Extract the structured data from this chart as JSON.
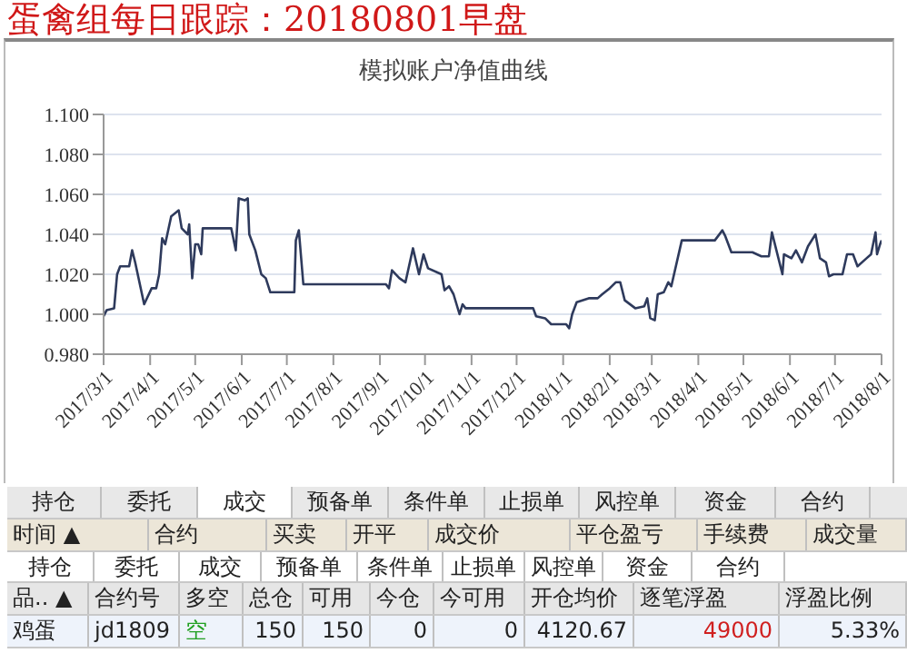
{
  "chart_data": {
    "type": "line",
    "title": "蛋禽组每日跟踪：20180801早盘",
    "subtitle": "模拟账户净值曲线",
    "x": [
      "2017-03-01",
      "2017-03-03",
      "2017-03-08",
      "2017-03-10",
      "2017-03-12",
      "2017-03-18",
      "2017-03-20",
      "2017-03-22",
      "2017-03-28",
      "2017-04-02",
      "2017-04-05",
      "2017-04-07",
      "2017-04-09",
      "2017-04-11",
      "2017-04-15",
      "2017-04-20",
      "2017-04-22",
      "2017-04-26",
      "2017-04-27",
      "2017-04-29",
      "2017-05-01",
      "2017-05-03",
      "2017-05-05",
      "2017-05-06",
      "2017-05-25",
      "2017-05-28",
      "2017-05-30",
      "2017-06-03",
      "2017-06-05",
      "2017-06-06",
      "2017-06-10",
      "2017-06-14",
      "2017-06-17",
      "2017-06-20",
      "2017-07-06",
      "2017-07-07",
      "2017-07-09",
      "2017-07-12",
      "2017-09-05",
      "2017-09-07",
      "2017-09-09",
      "2017-09-14",
      "2017-09-18",
      "2017-09-23",
      "2017-09-27",
      "2017-09-30",
      "2017-10-03",
      "2017-10-12",
      "2017-10-14",
      "2017-10-17",
      "2017-10-20",
      "2017-10-24",
      "2017-10-26",
      "2017-10-28",
      "2017-12-12",
      "2017-12-14",
      "2017-12-20",
      "2017-12-24",
      "2018-01-03",
      "2018-01-05",
      "2018-01-07",
      "2018-01-10",
      "2018-01-18",
      "2018-01-24",
      "2018-01-27",
      "2018-02-01",
      "2018-02-05",
      "2018-02-08",
      "2018-02-11",
      "2018-02-18",
      "2018-02-24",
      "2018-02-26",
      "2018-02-28",
      "2018-03-03",
      "2018-03-05",
      "2018-03-09",
      "2018-03-12",
      "2018-03-14",
      "2018-03-21",
      "2018-04-12",
      "2018-04-17",
      "2018-04-19",
      "2018-04-23",
      "2018-05-07",
      "2018-05-13",
      "2018-05-18",
      "2018-05-20",
      "2018-05-23",
      "2018-05-27",
      "2018-05-28",
      "2018-06-02",
      "2018-06-05",
      "2018-06-09",
      "2018-06-13",
      "2018-06-18",
      "2018-06-21",
      "2018-06-25",
      "2018-06-27",
      "2018-06-30",
      "2018-07-06",
      "2018-07-09",
      "2018-07-13",
      "2018-07-16",
      "2018-07-22",
      "2018-07-25",
      "2018-07-28",
      "2018-07-29",
      "2018-07-31",
      "2018-08-01"
    ],
    "series": [
      {
        "color": "#2e3a5c",
        "values": [
          0.999,
          1.002,
          1.003,
          1.02,
          1.024,
          1.024,
          1.032,
          1.026,
          1.005,
          1.013,
          1.013,
          1.02,
          1.038,
          1.035,
          1.049,
          1.052,
          1.043,
          1.04,
          1.045,
          1.018,
          1.035,
          1.035,
          1.03,
          1.043,
          1.043,
          1.032,
          1.058,
          1.057,
          1.058,
          1.04,
          1.032,
          1.02,
          1.018,
          1.011,
          1.011,
          1.037,
          1.042,
          1.015,
          1.015,
          1.013,
          1.022,
          1.018,
          1.016,
          1.033,
          1.02,
          1.03,
          1.023,
          1.02,
          1.012,
          1.014,
          1.01,
          1.0,
          1.005,
          1.003,
          1.003,
          0.999,
          0.998,
          0.995,
          0.995,
          0.993,
          1.0,
          1.006,
          1.008,
          1.008,
          1.01,
          1.013,
          1.016,
          1.016,
          1.007,
          1.003,
          1.004,
          1.008,
          0.998,
          0.997,
          1.01,
          1.011,
          1.016,
          1.014,
          1.037,
          1.037,
          1.042,
          1.039,
          1.031,
          1.031,
          1.029,
          1.029,
          1.041,
          1.032,
          1.02,
          1.03,
          1.028,
          1.032,
          1.026,
          1.034,
          1.04,
          1.028,
          1.026,
          1.019,
          1.02,
          1.02,
          1.03,
          1.03,
          1.024,
          1.028,
          1.03,
          1.041,
          1.03,
          1.035,
          1.037
        ]
      }
    ],
    "xlim": [
      "2017-03-01",
      "2018-08-01"
    ],
    "xticks": [
      {
        "value": "2017-03-01",
        "label": "2017/3/1"
      },
      {
        "value": "2017-04-01",
        "label": "2017/4/1"
      },
      {
        "value": "2017-05-01",
        "label": "2017/5/1"
      },
      {
        "value": "2017-06-01",
        "label": "2017/6/1"
      },
      {
        "value": "2017-07-01",
        "label": "2017/7/1"
      },
      {
        "value": "2017-08-01",
        "label": "2017/8/1"
      },
      {
        "value": "2017-09-01",
        "label": "2017/9/1"
      },
      {
        "value": "2017-10-01",
        "label": "2017/10/1"
      },
      {
        "value": "2017-11-01",
        "label": "2017/11/1"
      },
      {
        "value": "2017-12-01",
        "label": "2017/12/1"
      },
      {
        "value": "2018-01-01",
        "label": "2018/1/1"
      },
      {
        "value": "2018-02-01",
        "label": "2018/2/1"
      },
      {
        "value": "2018-03-01",
        "label": "2018/3/1"
      },
      {
        "value": "2018-04-01",
        "label": "2018/4/1"
      },
      {
        "value": "2018-05-01",
        "label": "2018/5/1"
      },
      {
        "value": "2018-06-01",
        "label": "2018/6/1"
      },
      {
        "value": "2018-07-01",
        "label": "2018/7/1"
      },
      {
        "value": "2018-08-01",
        "label": "2018/8/1"
      }
    ],
    "ylim": [
      0.98,
      1.1
    ],
    "yticks": [
      {
        "value": 0.98,
        "label": "0.980"
      },
      {
        "value": 1.0,
        "label": "1.000"
      },
      {
        "value": 1.02,
        "label": "1.020"
      },
      {
        "value": 1.04,
        "label": "1.040"
      },
      {
        "value": 1.06,
        "label": "1.060"
      },
      {
        "value": 1.08,
        "label": "1.080"
      },
      {
        "value": 1.1,
        "label": "1.100"
      }
    ],
    "grid": "y",
    "legend": false,
    "marker": "none",
    "line_style": "solid",
    "annotations": [
      "持仓  委托  成交  预备单  条件单  止损单  风控单  资金  合约",
      "时间 ▲  合约  买卖  开平  成交价  平仓盈亏  手续费  成交量",
      "持仓  委托  成交  预备单  条件单  止损单  风控单  资金  合约",
      "品.. ▲  合约号  多空  总仓  可用  今仓  今可用  开仓均价  逐笔浮盈  浮盈比例",
      "鸡蛋  jd1809  空  150  150  0  0  4120.67  49000  5.33%"
    ]
  }
}
